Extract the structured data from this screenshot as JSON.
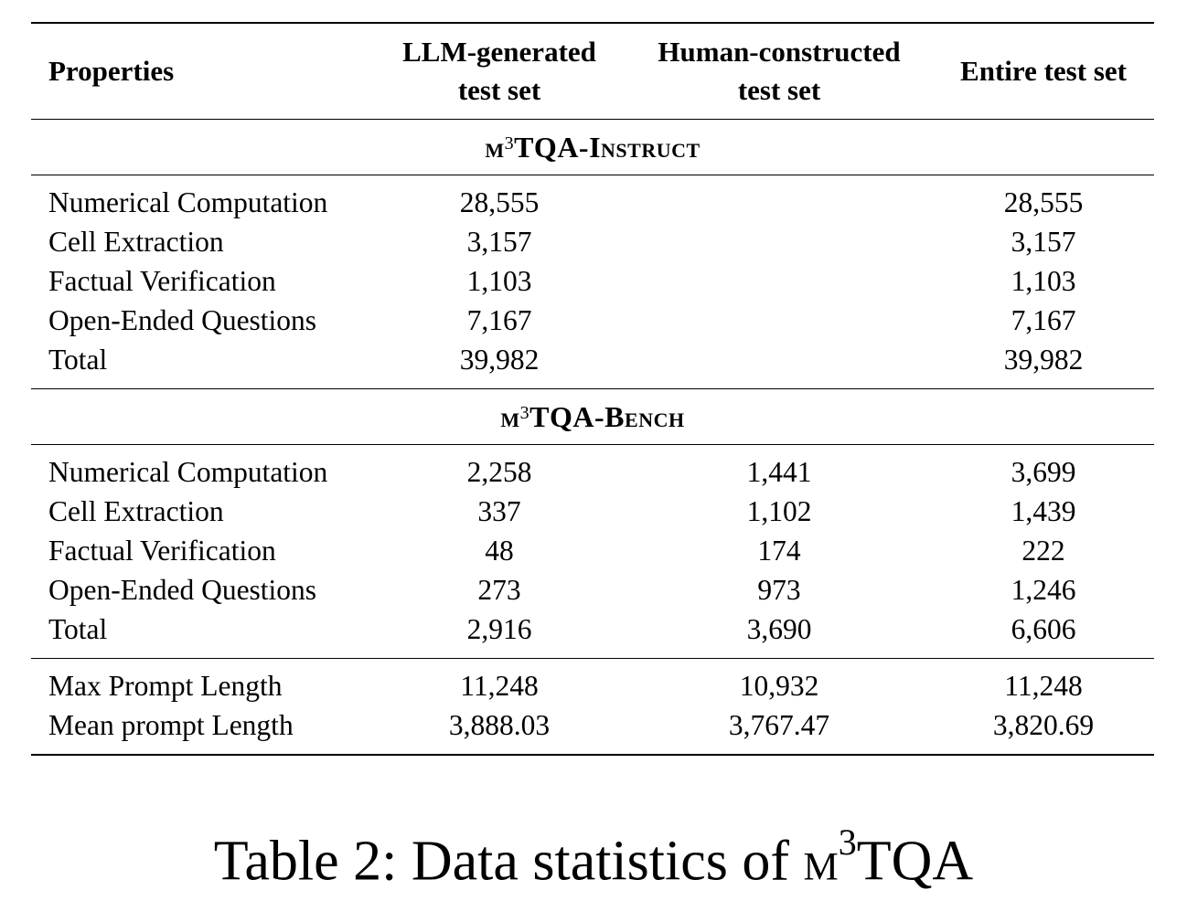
{
  "header": {
    "col0": "Properties",
    "col1_line1": "LLM-generated",
    "col1_line2": "test set",
    "col2_line1": "Human-constructed",
    "col2_line2": "test set",
    "col3": "Entire test set"
  },
  "sections": [
    {
      "prefix": "m",
      "sup": "3",
      "name": "TQA-Instruct",
      "rows": [
        {
          "label": "Numerical Computation",
          "llm": "28,555",
          "human": "",
          "entire": "28,555"
        },
        {
          "label": "Cell Extraction",
          "llm": "3,157",
          "human": "",
          "entire": "3,157"
        },
        {
          "label": "Factual Verification",
          "llm": "1,103",
          "human": "",
          "entire": "1,103"
        },
        {
          "label": "Open-Ended Questions",
          "llm": "7,167",
          "human": "",
          "entire": "7,167"
        },
        {
          "label": "Total",
          "llm": "39,982",
          "human": "",
          "entire": "39,982"
        }
      ]
    },
    {
      "prefix": "m",
      "sup": "3",
      "name": "TQA-Bench",
      "rows": [
        {
          "label": "Numerical Computation",
          "llm": "2,258",
          "human": "1,441",
          "entire": "3,699"
        },
        {
          "label": "Cell Extraction",
          "llm": "337",
          "human": "1,102",
          "entire": "1,439"
        },
        {
          "label": "Factual Verification",
          "llm": "48",
          "human": "174",
          "entire": "222"
        },
        {
          "label": "Open-Ended Questions",
          "llm": "273",
          "human": "973",
          "entire": "1,246"
        },
        {
          "label": "Total",
          "llm": "2,916",
          "human": "3,690",
          "entire": "6,606"
        }
      ]
    }
  ],
  "lengths": [
    {
      "label": "Max Prompt Length",
      "llm": "11,248",
      "human": "10,932",
      "entire": "11,248"
    },
    {
      "label": "Mean prompt Length",
      "llm": "3,888.03",
      "human": "3,767.47",
      "entire": "3,820.69"
    }
  ],
  "caption": {
    "prefix": "Table 2: Data statistics of ",
    "m": "m",
    "sup": "3",
    "rest": "TQA"
  }
}
